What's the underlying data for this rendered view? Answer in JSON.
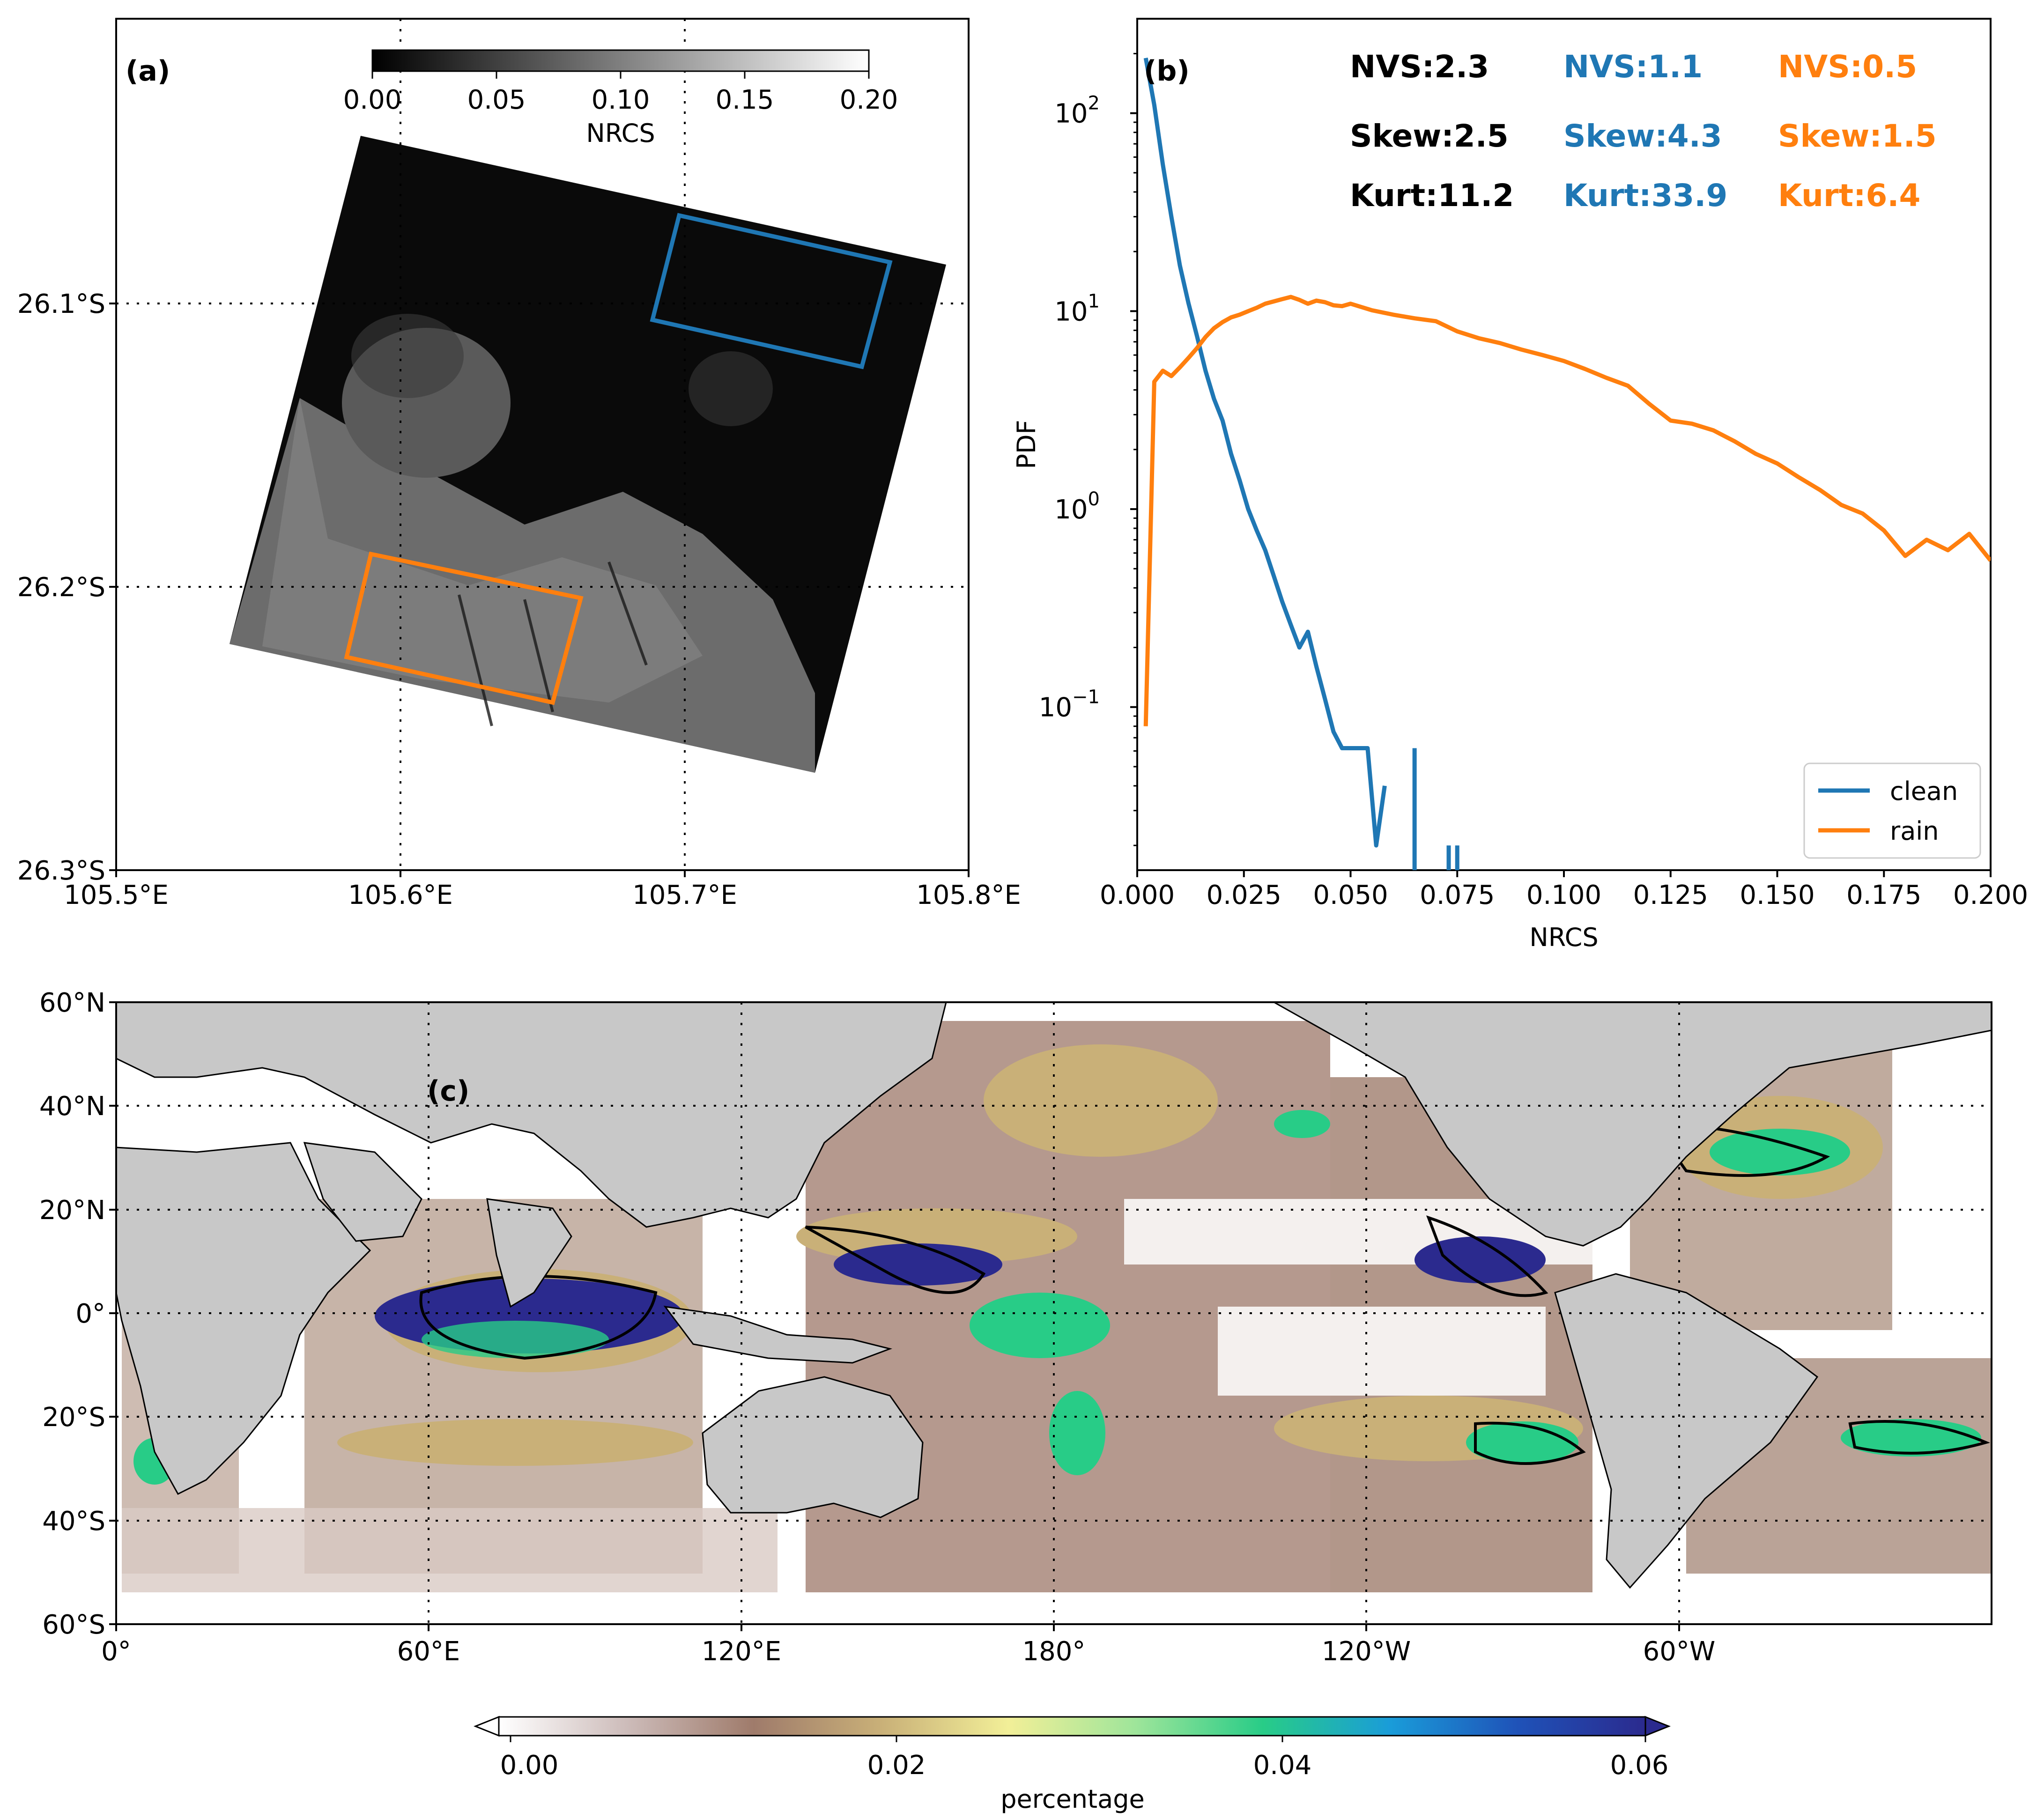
{
  "chart_data": [
    {
      "panel": "a",
      "type": "image-map",
      "label": "(a)",
      "colorbar": {
        "label": "NRCS",
        "ticks": [
          "0.00",
          "0.05",
          "0.10",
          "0.15",
          "0.20"
        ],
        "range": [
          0,
          0.2
        ],
        "colors": [
          "#000000",
          "#ffffff"
        ]
      },
      "x_ticks": [
        "105.5°E",
        "105.6°E",
        "105.7°E",
        "105.8°E"
      ],
      "y_ticks": [
        "26.1°S",
        "26.2°S",
        "26.3°S"
      ],
      "xlim": [
        105.5,
        105.8
      ],
      "ylim": [
        -26.3,
        -26.0
      ],
      "boxes": [
        {
          "name": "clean",
          "color": "#1f77b4"
        },
        {
          "name": "rain",
          "color": "#ff7f0e"
        }
      ]
    },
    {
      "panel": "b",
      "type": "line",
      "label": "(b)",
      "xlabel": "NRCS",
      "ylabel": "PDF",
      "xlim": [
        0,
        0.2
      ],
      "ylim": [
        0.015,
        300
      ],
      "yscale": "log",
      "x_ticks": [
        "0.000",
        "0.025",
        "0.050",
        "0.075",
        "0.100",
        "0.125",
        "0.150",
        "0.175",
        "0.200"
      ],
      "y_ticks": [
        {
          "base": "10",
          "exp": "2",
          "value": 100
        },
        {
          "base": "10",
          "exp": "1",
          "value": 10
        },
        {
          "base": "10",
          "exp": "0",
          "value": 1
        },
        {
          "base": "10",
          "exp": "−1",
          "value": 0.1
        }
      ],
      "stats": [
        {
          "color": "#000000",
          "nvs": "NVS:2.3",
          "skew": "Skew:2.5",
          "kurt": "Kurt:11.2"
        },
        {
          "color": "#1f77b4",
          "nvs": "NVS:1.1",
          "skew": "Skew:4.3",
          "kurt": "Kurt:33.9"
        },
        {
          "color": "#ff7f0e",
          "nvs": "NVS:0.5",
          "skew": "Skew:1.5",
          "kurt": "Kurt:6.4"
        }
      ],
      "legend": {
        "placement": "lower-right",
        "entries": [
          "clean",
          "rain"
        ]
      },
      "series": [
        {
          "name": "clean",
          "color": "#1f77b4",
          "x": [
            0.002,
            0.004,
            0.006,
            0.008,
            0.01,
            0.012,
            0.014,
            0.016,
            0.018,
            0.02,
            0.022,
            0.024,
            0.026,
            0.028,
            0.03,
            0.032,
            0.034,
            0.036,
            0.038,
            0.04,
            0.042,
            0.044,
            0.046,
            0.048,
            0.05,
            0.052,
            0.054,
            0.056,
            0.058
          ],
          "values": [
            190,
            110,
            55,
            30,
            17,
            11,
            7.5,
            5,
            3.6,
            2.8,
            1.9,
            1.4,
            1.0,
            0.78,
            0.62,
            0.46,
            0.34,
            0.26,
            0.2,
            0.24,
            0.16,
            0.11,
            0.075,
            0.062,
            0.062,
            0.062,
            0.062,
            0.02,
            0.04
          ]
        },
        {
          "name": "rain",
          "color": "#ff7f0e",
          "x": [
            0.002,
            0.004,
            0.006,
            0.008,
            0.01,
            0.012,
            0.014,
            0.016,
            0.018,
            0.02,
            0.022,
            0.024,
            0.026,
            0.028,
            0.03,
            0.032,
            0.034,
            0.036,
            0.038,
            0.04,
            0.042,
            0.044,
            0.046,
            0.048,
            0.05,
            0.055,
            0.06,
            0.065,
            0.07,
            0.075,
            0.08,
            0.085,
            0.09,
            0.095,
            0.1,
            0.105,
            0.11,
            0.115,
            0.12,
            0.125,
            0.13,
            0.135,
            0.14,
            0.145,
            0.15,
            0.155,
            0.16,
            0.165,
            0.17,
            0.175,
            0.18,
            0.185,
            0.19,
            0.195,
            0.2
          ],
          "values": [
            0.08,
            4.4,
            5.0,
            4.7,
            5.2,
            5.8,
            6.5,
            7.4,
            8.2,
            8.8,
            9.3,
            9.6,
            10.0,
            10.4,
            10.9,
            11.2,
            11.5,
            11.8,
            11.4,
            10.9,
            11.3,
            11.1,
            10.7,
            10.6,
            10.9,
            10.1,
            9.6,
            9.2,
            8.9,
            7.9,
            7.3,
            6.9,
            6.4,
            6.0,
            5.6,
            5.1,
            4.6,
            4.2,
            3.4,
            2.8,
            2.7,
            2.5,
            2.2,
            1.9,
            1.7,
            1.45,
            1.25,
            1.05,
            0.95,
            0.78,
            0.58,
            0.7,
            0.62,
            0.75,
            0.55
          ]
        }
      ]
    },
    {
      "panel": "c",
      "type": "heatmap",
      "label": "(c)",
      "colorbar": {
        "label": "percentage",
        "ticks": [
          "0.00",
          "0.02",
          "0.04",
          "0.06"
        ],
        "range": [
          0,
          0.06
        ],
        "colors": [
          "#ffffff",
          "#cdbcba",
          "#9f7b6b",
          "#c9b078",
          "#f2ef98",
          "#9ee59a",
          "#28cc87",
          "#1a9cd9",
          "#1f52b8",
          "#2b2a8e"
        ]
      },
      "x_ticks": [
        "0°",
        "60°E",
        "120°E",
        "180°",
        "120°W",
        "60°W"
      ],
      "y_ticks": [
        "60°N",
        "40°N",
        "20°N",
        "0°",
        "20°S",
        "40°S",
        "60°S"
      ],
      "xlim": [
        0,
        360
      ],
      "ylim": [
        -60,
        60
      ]
    }
  ]
}
